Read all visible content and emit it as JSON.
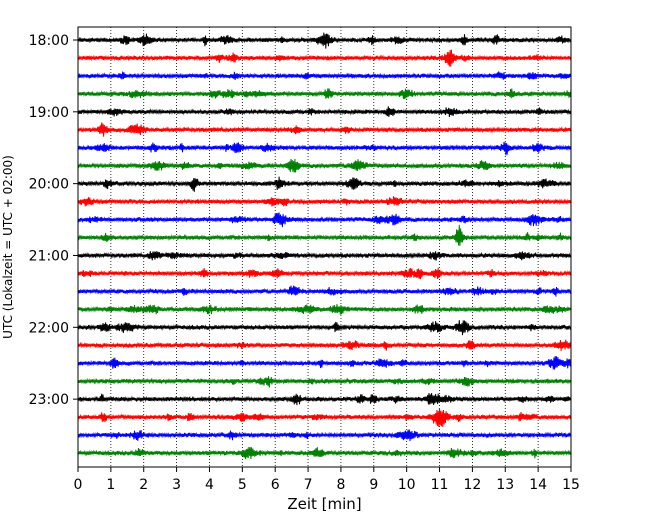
{
  "chart_data": {
    "type": "line",
    "subtype": "helicorder-seismogram",
    "xlabel": "Zeit  [min]",
    "ylabel": "UTC (Lokalzeit = UTC + 02:00)",
    "xlim": [
      0,
      15
    ],
    "x_ticks": [
      "0",
      "1",
      "2",
      "3",
      "4",
      "5",
      "6",
      "7",
      "8",
      "9",
      "10",
      "11",
      "12",
      "13",
      "14",
      "15"
    ],
    "y_tick_labels": [
      "18:00",
      "19:00",
      "20:00",
      "21:00",
      "22:00",
      "23:00"
    ],
    "trace_interval_minutes": 15,
    "grid": {
      "vertical_dotted": true
    },
    "trace_colors": [
      "#000000",
      "#ff0000",
      "#0000ff",
      "#008000"
    ],
    "trace_start_times": [
      "18:00",
      "18:15",
      "18:30",
      "18:45",
      "19:00",
      "19:15",
      "19:30",
      "19:45",
      "20:00",
      "20:15",
      "20:30",
      "20:45",
      "21:00",
      "21:15",
      "21:30",
      "21:45",
      "22:00",
      "22:15",
      "22:30",
      "22:45",
      "23:00",
      "23:15",
      "23:30",
      "23:45"
    ],
    "notable_events": [
      {
        "trace": "20:45",
        "minute": 11.6,
        "note": "largest amplitude burst"
      }
    ]
  }
}
